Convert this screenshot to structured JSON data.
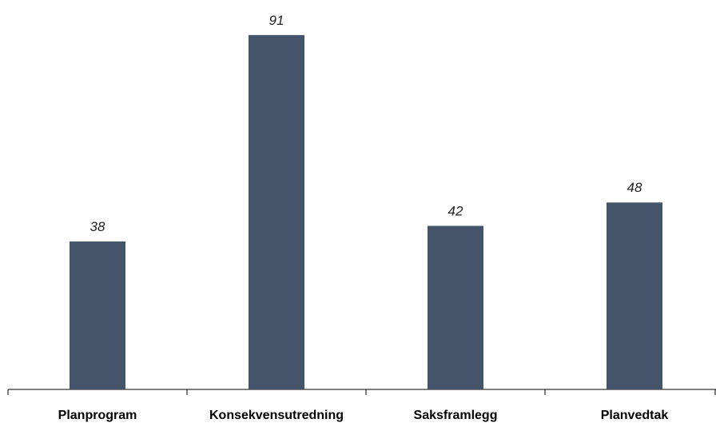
{
  "chart_data": {
    "type": "bar",
    "categories": [
      "Planprogram",
      "Konsekvensutredning",
      "Saksframlegg",
      "Planvedtak"
    ],
    "values": [
      38,
      91,
      42,
      48
    ],
    "data_labels": [
      "38",
      "91",
      "42",
      "48"
    ],
    "title": "",
    "xlabel": "",
    "ylabel": "",
    "ylim": [
      0,
      100
    ],
    "grid": false,
    "legend": "none",
    "bar_color": "#44546a"
  }
}
